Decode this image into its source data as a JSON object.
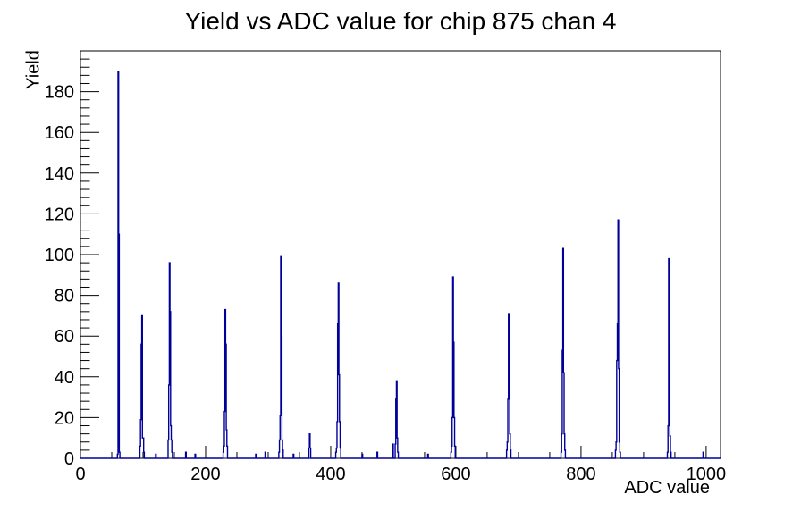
{
  "header": {
    "title": "Yield vs ADC value for chip 875 chan 4"
  },
  "chart_data": {
    "type": "histogram",
    "title": "Yield vs ADC value for chip 875 chan 4",
    "xlabel": "ADC value",
    "ylabel": "Yield",
    "xlim": [
      0,
      1023
    ],
    "ylim": [
      0,
      200
    ],
    "x_major_ticks": [
      0,
      200,
      400,
      600,
      800,
      1000
    ],
    "x_tick_labels": [
      "0",
      "200",
      "400",
      "600",
      "800",
      "1000"
    ],
    "x_minor_step": 50,
    "y_major_ticks": [
      0,
      20,
      40,
      60,
      80,
      100,
      120,
      140,
      160,
      180
    ],
    "y_tick_labels": [
      "0",
      "20",
      "40",
      "60",
      "80",
      "100",
      "120",
      "140",
      "160",
      "180"
    ],
    "y_minor_step": 4,
    "grid": false,
    "legend": "none",
    "line_color": "#000099",
    "frame_color": "#000000",
    "background_color": "#ffffff",
    "bins": [
      [
        59,
        2
      ],
      [
        60,
        190
      ],
      [
        61,
        110
      ],
      [
        62,
        3
      ],
      [
        95,
        6
      ],
      [
        96,
        19
      ],
      [
        97,
        56
      ],
      [
        98,
        70
      ],
      [
        99,
        10
      ],
      [
        100,
        10
      ],
      [
        101,
        3
      ],
      [
        120,
        2
      ],
      [
        140,
        9
      ],
      [
        141,
        36
      ],
      [
        142,
        96
      ],
      [
        143,
        72
      ],
      [
        144,
        16
      ],
      [
        145,
        9
      ],
      [
        146,
        3
      ],
      [
        168,
        3
      ],
      [
        183,
        2
      ],
      [
        228,
        3
      ],
      [
        229,
        6
      ],
      [
        230,
        23
      ],
      [
        231,
        73
      ],
      [
        232,
        56
      ],
      [
        233,
        14
      ],
      [
        234,
        6
      ],
      [
        280,
        2
      ],
      [
        295,
        3
      ],
      [
        317,
        3
      ],
      [
        318,
        9
      ],
      [
        319,
        21
      ],
      [
        320,
        99
      ],
      [
        321,
        60
      ],
      [
        322,
        9
      ],
      [
        323,
        4
      ],
      [
        340,
        2
      ],
      [
        365,
        5
      ],
      [
        366,
        12
      ],
      [
        367,
        5
      ],
      [
        408,
        3
      ],
      [
        409,
        5
      ],
      [
        410,
        18
      ],
      [
        411,
        66
      ],
      [
        412,
        86
      ],
      [
        413,
        41
      ],
      [
        414,
        18
      ],
      [
        415,
        5
      ],
      [
        450,
        2
      ],
      [
        474,
        3
      ],
      [
        499,
        7
      ],
      [
        503,
        7
      ],
      [
        504,
        29
      ],
      [
        505,
        38
      ],
      [
        506,
        10
      ],
      [
        507,
        3
      ],
      [
        555,
        2
      ],
      [
        592,
        3
      ],
      [
        593,
        6
      ],
      [
        594,
        20
      ],
      [
        595,
        89
      ],
      [
        596,
        57
      ],
      [
        597,
        20
      ],
      [
        598,
        6
      ],
      [
        681,
        4
      ],
      [
        682,
        8
      ],
      [
        683,
        29
      ],
      [
        684,
        71
      ],
      [
        685,
        62
      ],
      [
        686,
        12
      ],
      [
        687,
        4
      ],
      [
        768,
        3
      ],
      [
        769,
        12
      ],
      [
        770,
        53
      ],
      [
        771,
        103
      ],
      [
        772,
        42
      ],
      [
        773,
        12
      ],
      [
        774,
        4
      ],
      [
        855,
        4
      ],
      [
        856,
        8
      ],
      [
        857,
        48
      ],
      [
        858,
        66
      ],
      [
        859,
        117
      ],
      [
        860,
        44
      ],
      [
        861,
        8
      ],
      [
        862,
        3
      ],
      [
        938,
        3
      ],
      [
        939,
        16
      ],
      [
        940,
        98
      ],
      [
        941,
        94
      ],
      [
        942,
        11
      ],
      [
        943,
        3
      ],
      [
        995,
        3
      ]
    ]
  }
}
